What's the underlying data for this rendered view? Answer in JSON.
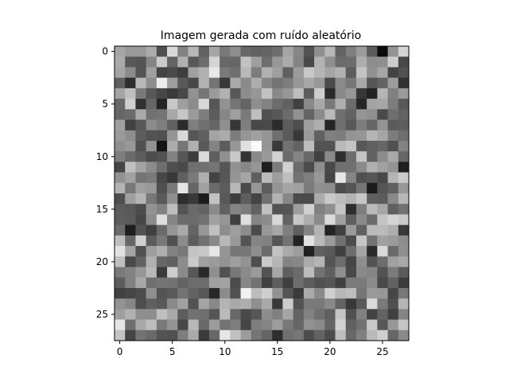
{
  "chart_data": {
    "type": "heatmap",
    "title": "Imagem gerada com ruído aleatório",
    "xlabel": "",
    "ylabel": "",
    "colormap": "gray",
    "rows": 28,
    "cols": 28,
    "xlim": [
      -0.5,
      27.5
    ],
    "ylim": [
      27.5,
      -0.5
    ],
    "xticks": [
      0,
      5,
      10,
      15,
      20,
      25
    ],
    "yticks": [
      0,
      5,
      10,
      15,
      20,
      25
    ],
    "value_range": [
      0,
      1
    ],
    "data_note": "Random noise image; pixel intensities are uniformly random in the range shown by the gray colormap."
  }
}
